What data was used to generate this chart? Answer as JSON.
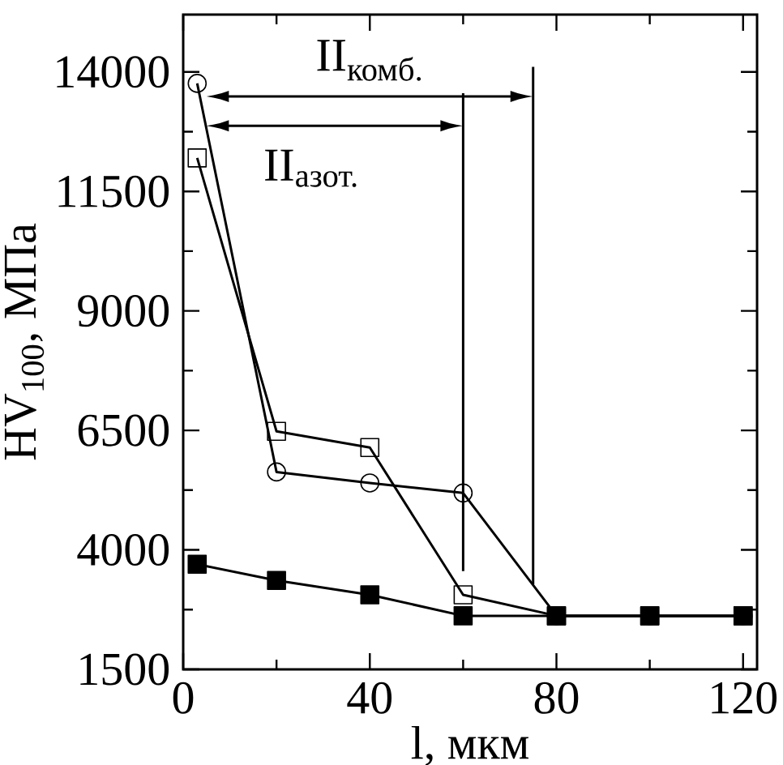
{
  "chart_data": {
    "type": "line",
    "xlabel": "l, мкм",
    "ylabel": "HV$_{100}$, МПа",
    "x": [
      3,
      20,
      40,
      60,
      80,
      100,
      120
    ],
    "series": [
      {
        "color": "#000000",
        "marker": "square",
        "values": [
          12200,
          6480,
          6140,
          3060,
          2620,
          2620,
          2620
        ]
      },
      {
        "color": "#000000",
        "marker": "circle",
        "values": [
          13760,
          5630,
          5400,
          5190,
          2620,
          2620,
          2620
        ]
      },
      {
        "color": "#000000",
        "marker": "square",
        "colors": [
          "#000000",
          "#000000",
          "#000000",
          "#000000",
          "#000000",
          "#000000",
          "#000000"
        ],
        "values": [
          3700,
          3360,
          3060,
          2620,
          2620,
          2620,
          2620
        ]
      }
    ],
    "xlim": [
      0,
      123
    ],
    "ylim": [
      1500,
      15200
    ],
    "xticks": [
      0,
      40,
      80,
      120
    ],
    "yticks": [
      1500,
      4000,
      6500,
      9000,
      11500,
      14000
    ],
    "grid": false,
    "line_style": "solid",
    "ref_lines": [
      {
        "axis": "x",
        "value": 75,
        "label": "II$_{комб.}$",
        "color": "#000000"
      },
      {
        "axis": "x",
        "value": 60,
        "label": "II$_{азот.}$",
        "color": "#000000"
      }
    ]
  }
}
